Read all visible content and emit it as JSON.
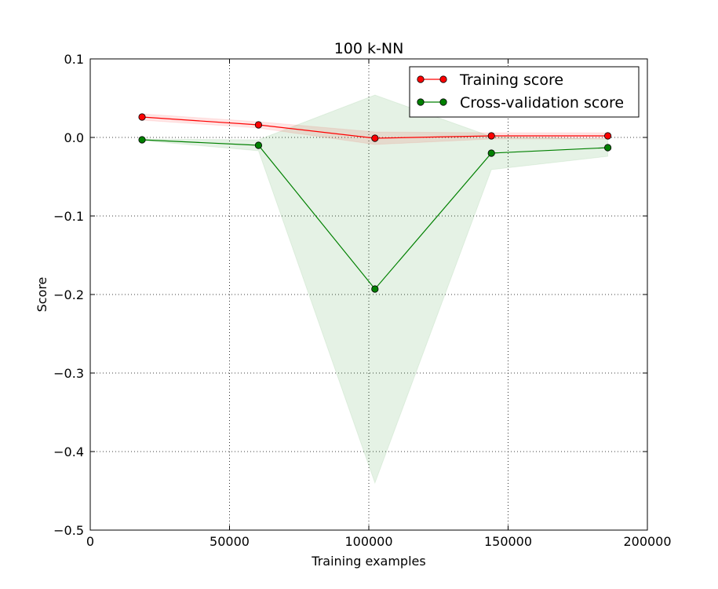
{
  "chart_data": {
    "type": "line",
    "title": "100 k-NN",
    "xlabel": "Training examples",
    "ylabel": "Score",
    "xlim": [
      0,
      200000
    ],
    "ylim": [
      -0.5,
      0.1
    ],
    "x_ticks": [
      0,
      50000,
      100000,
      150000,
      200000
    ],
    "x_tick_labels": [
      "0",
      "50000",
      "100000",
      "150000",
      "200000"
    ],
    "y_ticks": [
      0.1,
      0.0,
      -0.1,
      -0.2,
      -0.3,
      -0.4,
      -0.5
    ],
    "y_tick_labels": [
      "0.1",
      "0.0",
      "−0.1",
      "−0.2",
      "−0.3",
      "−0.4",
      "−0.5"
    ],
    "grid": true,
    "legend_position": "top-right",
    "x": [
      18600,
      60400,
      102200,
      144000,
      185800
    ],
    "series": [
      {
        "name": "Training score",
        "color": "#ff0000",
        "values": [
          0.026,
          0.016,
          -0.001,
          0.002,
          0.002
        ],
        "band_lower": [
          0.022,
          0.012,
          -0.009,
          -0.002,
          -0.002
        ],
        "band_upper": [
          0.03,
          0.02,
          0.007,
          0.006,
          0.006
        ]
      },
      {
        "name": "Cross-validation score",
        "color": "#008000",
        "values": [
          -0.003,
          -0.01,
          -0.193,
          -0.02,
          -0.013
        ],
        "band_lower": [
          -0.004,
          -0.017,
          -0.44,
          -0.041,
          -0.024
        ],
        "band_upper": [
          -0.002,
          -0.003,
          0.054,
          0.001,
          -0.002
        ]
      }
    ]
  }
}
